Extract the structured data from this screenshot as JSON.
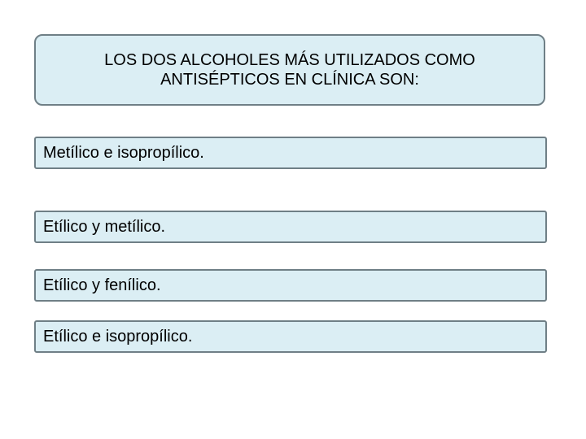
{
  "question": {
    "line1": "LOS DOS ALCOHOLES MÁS UTILIZADOS COMO",
    "line2": "ANTISÉPTICOS EN CLÍNICA SON:"
  },
  "options": [
    {
      "label": "Metílico e isopropílico."
    },
    {
      "label": "Etílico y metílico."
    },
    {
      "label": "Etílico y fenílico."
    },
    {
      "label": "Etílico e isopropílico."
    }
  ],
  "colors": {
    "box_fill": "#dbeef4",
    "box_border": "#6f7f86",
    "background": "#ffffff"
  }
}
